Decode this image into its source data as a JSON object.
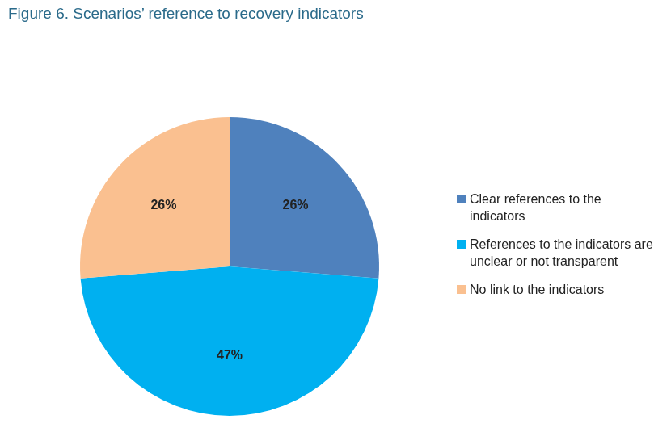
{
  "chart_data": {
    "type": "pie",
    "title": "Figure 6. Scenarios’ reference to recovery indicators",
    "categories": [
      "Clear references to the indicators",
      "References to the indicators are unclear or not transparent",
      "No link to the indicators"
    ],
    "values": [
      26,
      47,
      26
    ],
    "value_labels": [
      "26%",
      "47%",
      "26%"
    ],
    "colors": [
      "#4f81bd",
      "#00b0f0",
      "#fac090"
    ],
    "data_labels": true,
    "legend": "right"
  }
}
